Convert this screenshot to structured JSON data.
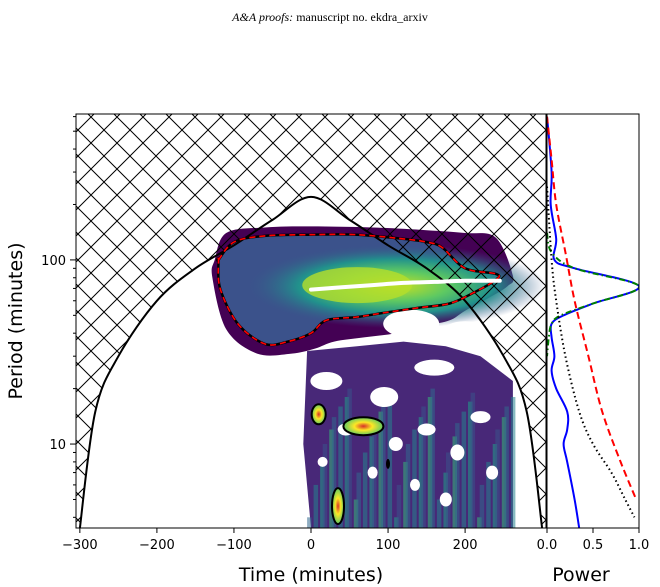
{
  "header": {
    "italic_part": "A&A proofs:",
    "rest": " manuscript no. ekdra_arxiv"
  },
  "chart_data": [
    {
      "type": "heatmap",
      "panel": "wavelet-power-spectrum",
      "xlabel": "Time (minutes)",
      "ylabel": "Period (minutes)",
      "xlim": [
        -305,
        305
      ],
      "ylim": [
        3.5,
        620
      ],
      "yscale": "log",
      "xticks": [
        -300,
        -200,
        -100,
        0,
        100,
        200
      ],
      "xtick_labels": [
        "−300",
        "−200",
        "−100",
        "0",
        "100",
        "200"
      ],
      "yticks": [
        10,
        100
      ],
      "ytick_labels": [
        "10",
        "100"
      ],
      "colormap": "viridis",
      "cone_of_influence": {
        "x": [
          -300,
          -280,
          -250,
          -200,
          -150,
          -100,
          -50,
          0,
          50,
          100,
          150,
          200,
          250,
          280,
          300
        ],
        "y": [
          3.5,
          15,
          30,
          60,
          90,
          120,
          165,
          220,
          165,
          120,
          90,
          60,
          30,
          15,
          3.5
        ]
      },
      "ridge_line": {
        "color": "#ffffff",
        "x": [
          0,
          40,
          80,
          120,
          160,
          200,
          245
        ],
        "y": [
          69,
          71,
          73,
          75,
          76,
          77,
          77
        ]
      },
      "significance_contour": {
        "x": [
          -120,
          -100,
          -60,
          0,
          60,
          120,
          150,
          170,
          200,
          240,
          240,
          210,
          180,
          140,
          100,
          60,
          20,
          0,
          -30,
          -60,
          -95,
          -118,
          -120
        ],
        "y": [
          100,
          125,
          135,
          137,
          137,
          130,
          125,
          117,
          90,
          84,
          78,
          66,
          58,
          55,
          52,
          49,
          47,
          40,
          36,
          35,
          45,
          70,
          100
        ]
      }
    },
    {
      "type": "line",
      "panel": "global-wavelet-power",
      "xlabel": "Power",
      "xlim": [
        0,
        1
      ],
      "xticks": [
        0,
        0.5,
        1
      ],
      "xtick_labels": [
        "0.0",
        "0.5",
        "1.0"
      ],
      "series": [
        {
          "color": "#0000ff",
          "style": "solid",
          "x": [
            0.0,
            0.05,
            0.04,
            0.1,
            0.08,
            0.3,
            1.0,
            0.5,
            0.18,
            0.05,
            0.05,
            0.08,
            0.05,
            0.1,
            0.22,
            0.22,
            0.18,
            0.22,
            0.3,
            0.35
          ],
          "y": [
            600,
            300,
            200,
            130,
            100,
            90,
            72,
            58,
            50,
            45,
            38,
            30,
            25,
            20,
            15,
            12,
            10,
            8,
            5,
            3.5
          ]
        },
        {
          "color": "#008000",
          "style": "dashdot",
          "x": [
            0.0,
            0.05,
            0.3,
            1.0,
            0.5,
            0.15,
            0.05,
            0.02,
            0.0
          ],
          "y": [
            140,
            110,
            90,
            72,
            58,
            50,
            45,
            38,
            30
          ]
        },
        {
          "color": "#ff0000",
          "style": "dashed",
          "x": [
            0.0,
            0.05,
            0.1,
            0.2,
            0.3,
            0.45,
            0.6,
            0.8,
            0.97
          ],
          "y": [
            600,
            350,
            200,
            110,
            60,
            30,
            15,
            8,
            5
          ]
        },
        {
          "color": "#000000",
          "style": "dotted",
          "x": [
            0.0,
            0.05,
            0.1,
            0.2,
            0.35,
            0.5,
            0.7,
            0.85,
            0.95
          ],
          "y": [
            250,
            100,
            60,
            30,
            15,
            10,
            7,
            5,
            4
          ]
        }
      ]
    }
  ]
}
